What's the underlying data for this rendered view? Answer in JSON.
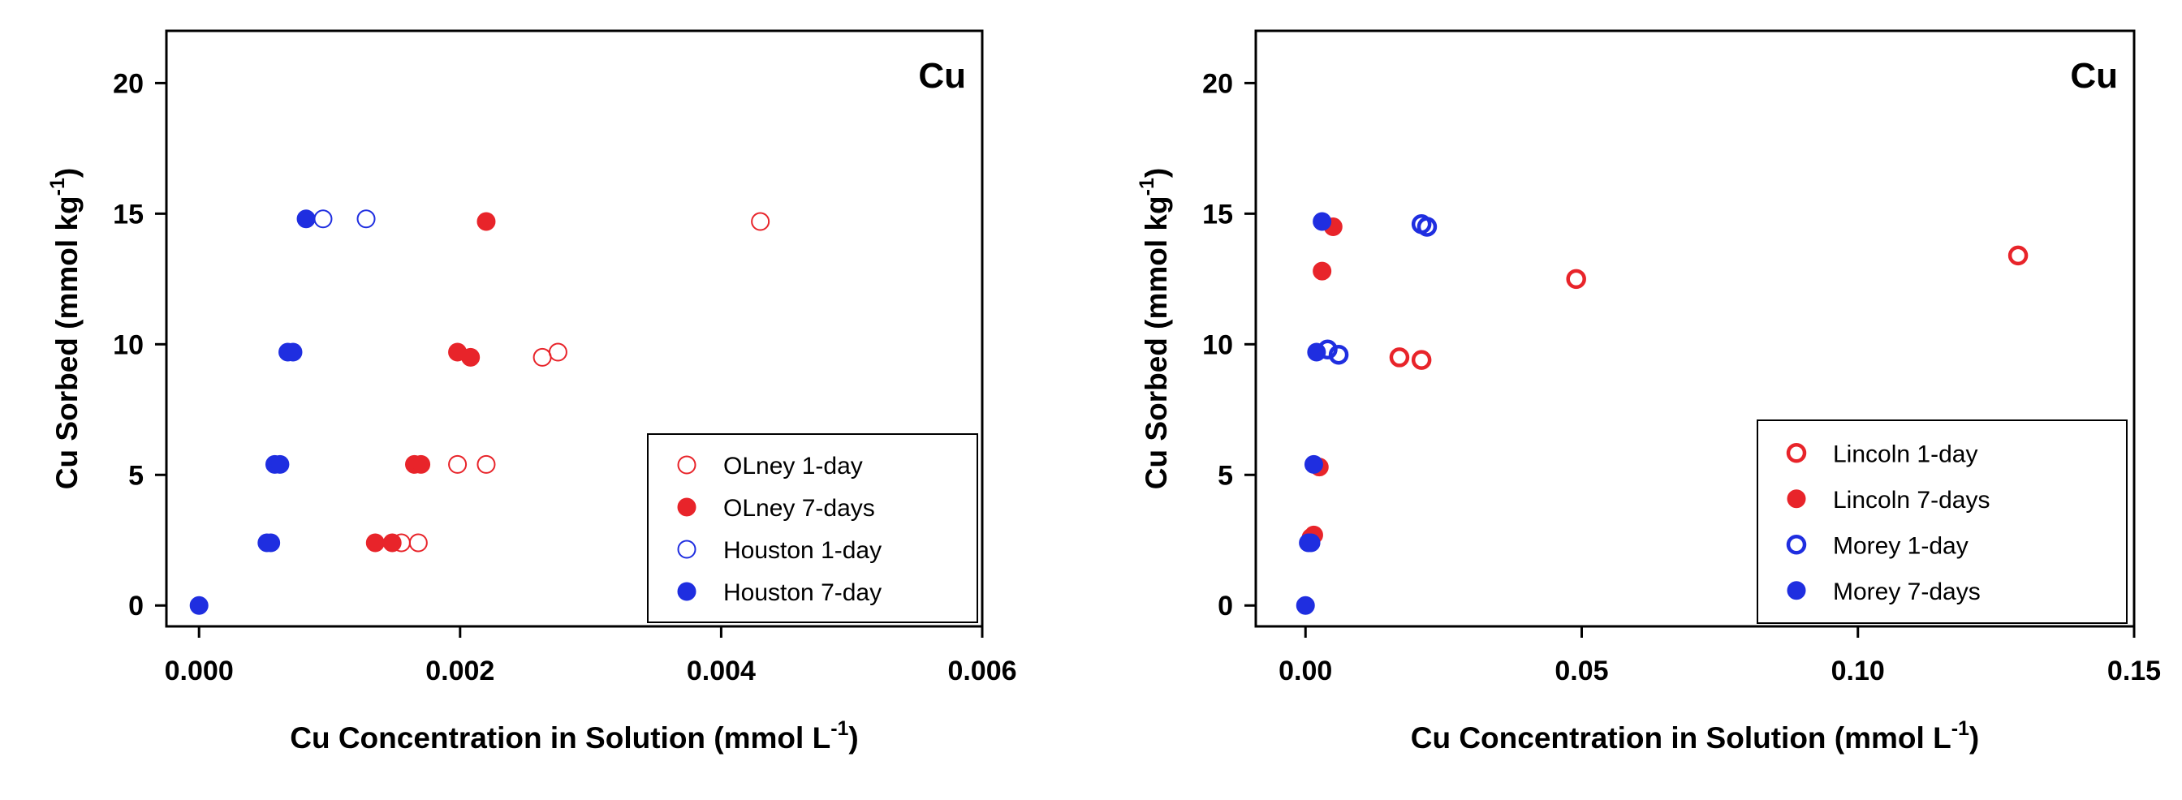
{
  "chart_data": [
    {
      "type": "scatter",
      "title": "Cu",
      "xlabel": "Cu Concentration in Solution (mmol L",
      "xlabel_sup": "-1",
      "xlabel_end": ")",
      "ylabel": "Cu Sorbed (mmol kg",
      "ylabel_sup": "-1",
      "ylabel_end": ")",
      "xlim": [
        -0.00025,
        0.006
      ],
      "ylim": [
        -0.8,
        22
      ],
      "xticks": [
        0.0,
        0.002,
        0.004,
        0.006
      ],
      "xtick_labels": [
        "0.000",
        "0.002",
        "0.004",
        "0.006"
      ],
      "yticks": [
        0,
        5,
        10,
        15,
        20
      ],
      "ytick_labels": [
        "0",
        "5",
        "10",
        "15",
        "20"
      ],
      "legend_position": "lower-right",
      "series": [
        {
          "name": "OLney 1-day",
          "color": "#e8242a",
          "marker": "open-small",
          "x": [
            0.0043,
            0.00263,
            0.00275,
            0.00198,
            0.0022,
            0.00155,
            0.00168
          ],
          "y": [
            14.7,
            9.5,
            9.7,
            5.4,
            5.4,
            2.4,
            2.4
          ]
        },
        {
          "name": "OLney 7-days",
          "color": "#e8242a",
          "marker": "filled",
          "x": [
            0.0022,
            0.00198,
            0.00208,
            0.00165,
            0.0017,
            0.00135,
            0.00148
          ],
          "y": [
            14.7,
            9.7,
            9.5,
            5.4,
            5.4,
            2.4,
            2.4
          ]
        },
        {
          "name": "Houston 1-day",
          "color": "#1f2ee0",
          "marker": "open-small",
          "x": [
            0.00095,
            0.00128
          ],
          "y": [
            14.8,
            14.8
          ]
        },
        {
          "name": "Houston 7-day",
          "color": "#1f2ee0",
          "marker": "filled",
          "x": [
            0.0,
            0.00052,
            0.00055,
            0.00058,
            0.00062,
            0.00068,
            0.00072,
            0.00082
          ],
          "y": [
            0.0,
            2.4,
            2.4,
            5.4,
            5.4,
            9.7,
            9.7,
            14.8
          ]
        }
      ]
    },
    {
      "type": "scatter",
      "title": "Cu",
      "xlabel": "Cu Concentration in Solution (mmol L",
      "xlabel_sup": "-1",
      "xlabel_end": ")",
      "ylabel": "Cu Sorbed (mmol kg",
      "ylabel_sup": "-1",
      "ylabel_end": ")",
      "xlim": [
        -0.009,
        0.15
      ],
      "ylim": [
        -0.8,
        22
      ],
      "xticks": [
        0.0,
        0.05,
        0.1,
        0.15
      ],
      "xtick_labels": [
        "0.00",
        "0.05",
        "0.10",
        "0.15"
      ],
      "yticks": [
        0,
        5,
        10,
        15,
        20
      ],
      "ytick_labels": [
        "0",
        "5",
        "10",
        "15",
        "20"
      ],
      "legend_position": "lower-right",
      "series": [
        {
          "name": "Lincoln 1-day",
          "color": "#e8242a",
          "marker": "open-thick",
          "x": [
            0.129,
            0.049,
            0.017,
            0.021
          ],
          "y": [
            13.4,
            12.5,
            9.5,
            9.4
          ]
        },
        {
          "name": "Lincoln 7-days",
          "color": "#e8242a",
          "marker": "filled",
          "x": [
            0.005,
            0.003,
            0.0025,
            0.0015,
            0.001
          ],
          "y": [
            14.5,
            12.8,
            5.3,
            2.7,
            2.6
          ]
        },
        {
          "name": "Morey 1-day",
          "color": "#1f2ee0",
          "marker": "open-thick",
          "x": [
            0.021,
            0.022,
            0.004,
            0.006
          ],
          "y": [
            14.6,
            14.5,
            9.8,
            9.6
          ]
        },
        {
          "name": "Morey 7-days",
          "color": "#1f2ee0",
          "marker": "filled",
          "x": [
            0.0,
            0.0005,
            0.001,
            0.0015,
            0.002,
            0.003
          ],
          "y": [
            0.0,
            2.4,
            2.4,
            5.4,
            9.7,
            14.7
          ]
        }
      ]
    }
  ]
}
